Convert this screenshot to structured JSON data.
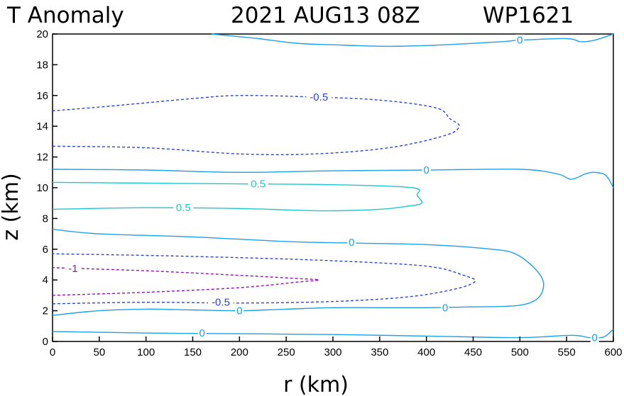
{
  "chart_data": {
    "type": "contour",
    "title": {
      "left": "T Anomaly",
      "date": "2021 AUG13 08Z",
      "storm": "WP1621"
    },
    "xlabel": "r (km)",
    "ylabel": "z (km)",
    "xlim": [
      0,
      600
    ],
    "ylim": [
      0,
      20
    ],
    "xticks": [
      0,
      50,
      100,
      150,
      200,
      250,
      300,
      350,
      400,
      450,
      500,
      550,
      600
    ],
    "yticks": [
      0,
      2,
      4,
      6,
      8,
      10,
      12,
      14,
      16,
      18,
      20
    ],
    "grid": false,
    "colors": {
      "zero": "#1ea0e6",
      "positive": "#1ec8c8",
      "neg_half": "#2d46d2",
      "neg_one": "#8c14be"
    },
    "contours": [
      {
        "level": 0,
        "style": "solid",
        "color_key": "zero",
        "points": [
          [
            0,
            0.65
          ],
          [
            100,
            0.55
          ],
          [
            200,
            0.5
          ],
          [
            300,
            0.45
          ],
          [
            400,
            0.35
          ],
          [
            500,
            0.25
          ],
          [
            555,
            0.4
          ],
          [
            575,
            0.25
          ],
          [
            590,
            0.3
          ],
          [
            600,
            0.8
          ]
        ]
      },
      {
        "level": 0,
        "style": "solid",
        "color_key": "zero",
        "points": [
          [
            0,
            1.7
          ],
          [
            50,
            2.0
          ],
          [
            100,
            2.1
          ],
          [
            150,
            2.05
          ],
          [
            200,
            2.0
          ],
          [
            250,
            2.1
          ],
          [
            300,
            2.2
          ],
          [
            350,
            2.2
          ],
          [
            400,
            2.2
          ],
          [
            450,
            2.25
          ],
          [
            490,
            2.3
          ],
          [
            510,
            2.5
          ],
          [
            522,
            3.0
          ],
          [
            525,
            3.9
          ],
          [
            515,
            4.8
          ],
          [
            495,
            5.7
          ],
          [
            470,
            6.0
          ],
          [
            400,
            6.3
          ],
          [
            320,
            6.4
          ],
          [
            250,
            6.5
          ],
          [
            150,
            6.8
          ],
          [
            50,
            7.0
          ],
          [
            0,
            7.3
          ]
        ]
      },
      {
        "level": 0,
        "style": "solid",
        "color_key": "zero",
        "points": [
          [
            0,
            11.2
          ],
          [
            100,
            11.15
          ],
          [
            200,
            11.0
          ],
          [
            300,
            11.1
          ],
          [
            400,
            11.15
          ],
          [
            500,
            11.2
          ],
          [
            540,
            10.9
          ],
          [
            555,
            10.55
          ],
          [
            570,
            10.9
          ],
          [
            580,
            11.0
          ],
          [
            592,
            10.8
          ],
          [
            600,
            10.0
          ]
        ]
      },
      {
        "level": 0,
        "style": "solid",
        "color_key": "zero",
        "points": [
          [
            170,
            20
          ],
          [
            220,
            19.7
          ],
          [
            260,
            19.4
          ],
          [
            300,
            19.3
          ],
          [
            360,
            19.2
          ],
          [
            420,
            19.3
          ],
          [
            480,
            19.5
          ],
          [
            500,
            19.6
          ],
          [
            550,
            19.7
          ],
          [
            565,
            19.5
          ],
          [
            580,
            19.6
          ],
          [
            600,
            20
          ]
        ]
      },
      {
        "level": 0.5,
        "style": "solid",
        "color_key": "positive",
        "points": [
          [
            0,
            8.6
          ],
          [
            100,
            8.7
          ],
          [
            200,
            8.65
          ],
          [
            290,
            8.5
          ],
          [
            350,
            8.6
          ],
          [
            380,
            8.8
          ],
          [
            395,
            9.0
          ],
          [
            390,
            9.5
          ],
          [
            385,
            10.0
          ],
          [
            300,
            10.2
          ],
          [
            200,
            10.25
          ],
          [
            100,
            10.3
          ],
          [
            0,
            10.35
          ]
        ]
      },
      {
        "level": -0.5,
        "style": "dashed",
        "color_key": "neg_half",
        "points": [
          [
            0,
            12.7
          ],
          [
            100,
            12.6
          ],
          [
            200,
            12.2
          ],
          [
            280,
            12.2
          ],
          [
            360,
            12.6
          ],
          [
            420,
            13.4
          ],
          [
            435,
            14.0
          ],
          [
            425,
            14.5
          ],
          [
            410,
            15.2
          ],
          [
            350,
            15.7
          ],
          [
            280,
            15.9
          ],
          [
            200,
            16.0
          ],
          [
            150,
            15.8
          ],
          [
            60,
            15.3
          ],
          [
            0,
            15.0
          ]
        ]
      },
      {
        "level": -0.5,
        "style": "dashed",
        "color_key": "neg_half",
        "points": [
          [
            0,
            2.45
          ],
          [
            100,
            2.55
          ],
          [
            200,
            2.5
          ],
          [
            300,
            2.6
          ],
          [
            380,
            2.9
          ],
          [
            430,
            3.4
          ],
          [
            452,
            3.9
          ],
          [
            440,
            4.3
          ],
          [
            400,
            4.9
          ],
          [
            300,
            5.25
          ],
          [
            200,
            5.45
          ],
          [
            100,
            5.6
          ],
          [
            0,
            5.7
          ]
        ]
      },
      {
        "level": -1,
        "style": "dashed",
        "color_key": "neg_one",
        "points": [
          [
            0,
            3.0
          ],
          [
            100,
            3.2
          ],
          [
            200,
            3.5
          ],
          [
            260,
            3.85
          ],
          [
            285,
            4.0
          ],
          [
            260,
            4.1
          ],
          [
            200,
            4.3
          ],
          [
            100,
            4.6
          ],
          [
            0,
            4.8
          ]
        ]
      }
    ],
    "contour_labels": [
      {
        "text": "0",
        "x": 500,
        "y": 19.6,
        "color_key": "zero"
      },
      {
        "text": "0",
        "x": 400,
        "y": 11.15,
        "color_key": "zero"
      },
      {
        "text": "0",
        "x": 320,
        "y": 6.45,
        "color_key": "zero"
      },
      {
        "text": "0",
        "x": 420,
        "y": 2.2,
        "color_key": "zero"
      },
      {
        "text": "0",
        "x": 200,
        "y": 2.0,
        "color_key": "zero"
      },
      {
        "text": "0",
        "x": 160,
        "y": 0.55,
        "color_key": "zero"
      },
      {
        "text": "0",
        "x": 580,
        "y": 0.25,
        "color_key": "zero"
      },
      {
        "text": "0.5",
        "x": 220,
        "y": 10.25,
        "color_key": "positive"
      },
      {
        "text": "0.5",
        "x": 140,
        "y": 8.7,
        "color_key": "positive"
      },
      {
        "text": "-0.5",
        "x": 285,
        "y": 15.9,
        "color_key": "neg_half"
      },
      {
        "text": "-0.5",
        "x": 180,
        "y": 2.55,
        "color_key": "neg_half"
      },
      {
        "text": "-1",
        "x": 22,
        "y": 4.75,
        "color_key": "neg_one"
      }
    ]
  }
}
